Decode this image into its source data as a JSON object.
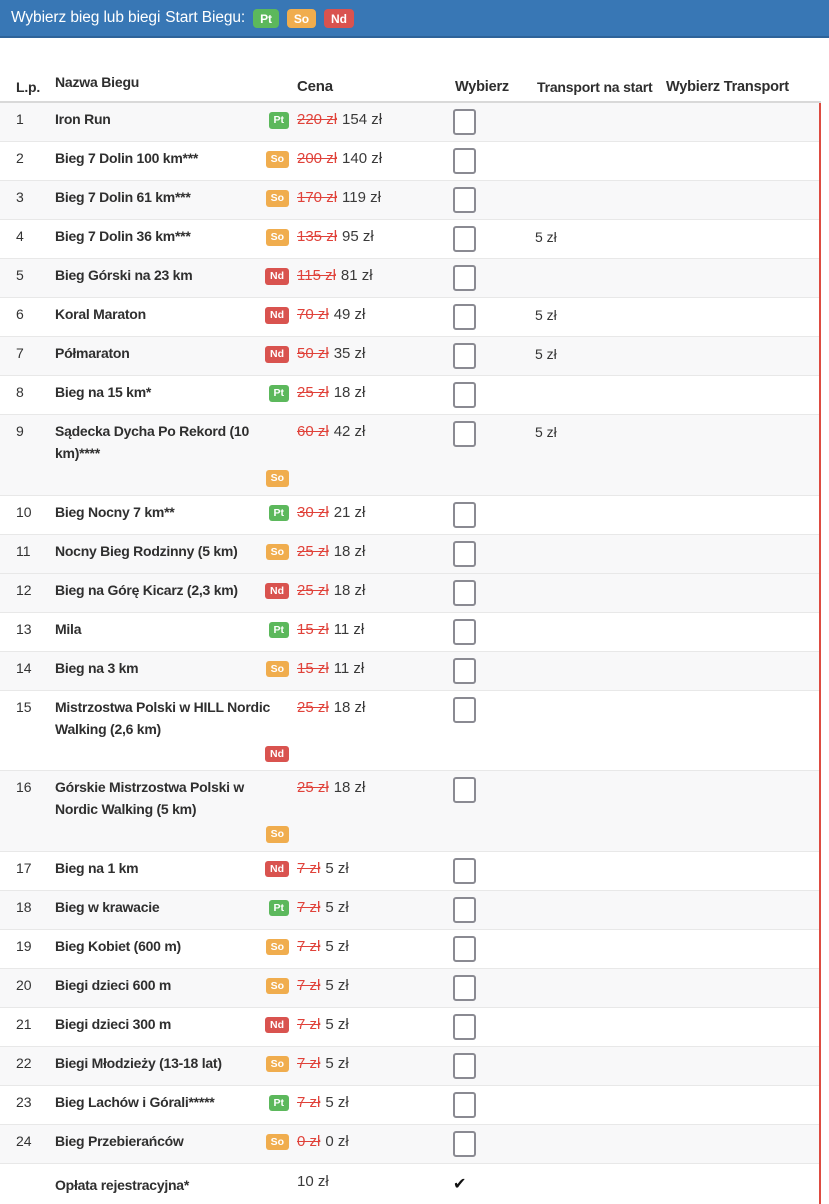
{
  "header_bar": {
    "title": "Wybierz bieg lub biegi",
    "legend_label": "Start Biegu:",
    "day_badges": [
      {
        "label": "Pt",
        "type": "pt"
      },
      {
        "label": "So",
        "type": "so"
      },
      {
        "label": "Nd",
        "type": "nd"
      }
    ]
  },
  "colors": {
    "bar_blue": "#3877b5",
    "badge_green": "#5cb85c",
    "badge_orange": "#f0ad4e",
    "badge_red": "#d9534f",
    "old_price_red": "#e0423a",
    "table_right_border_red": "#dd4b41"
  },
  "table": {
    "columns": [
      "L.p.",
      "Nazwa Biegu",
      "Cena",
      "Wybierz",
      "Transport na start",
      "Wybierz Transport"
    ],
    "rows": [
      {
        "lp": "1",
        "name": "Iron Run",
        "badge": "Pt",
        "old_price": "220 zł",
        "price": "154 zł",
        "transport": ""
      },
      {
        "lp": "2",
        "name": "Bieg 7 Dolin 100 km***",
        "badge": "So",
        "old_price": "200 zł",
        "price": "140 zł",
        "transport": ""
      },
      {
        "lp": "3",
        "name": "Bieg 7 Dolin 61 km***",
        "badge": "So",
        "old_price": "170 zł",
        "price": "119 zł",
        "transport": ""
      },
      {
        "lp": "4",
        "name": "Bieg 7 Dolin 36 km***",
        "badge": "So",
        "old_price": "135 zł",
        "price": "95 zł",
        "transport": "5 zł"
      },
      {
        "lp": "5",
        "name": "Bieg Górski na 23 km",
        "badge": "Nd",
        "old_price": "115 zł",
        "price": "81 zł",
        "transport": ""
      },
      {
        "lp": "6",
        "name": "Koral Maraton",
        "badge": "Nd",
        "old_price": "70 zł",
        "price": "49 zł",
        "transport": "5 zł"
      },
      {
        "lp": "7",
        "name": "Półmaraton",
        "badge": "Nd",
        "old_price": "50 zł",
        "price": "35 zł",
        "transport": "5 zł"
      },
      {
        "lp": "8",
        "name": "Bieg na 15 km*",
        "badge": "Pt",
        "old_price": "25 zł",
        "price": "18 zł",
        "transport": ""
      },
      {
        "lp": "9",
        "name": "Sądecka Dycha Po Rekord (10 km)****",
        "badge": "So",
        "old_price": "60 zł",
        "price": "42 zł",
        "transport": "5 zł"
      },
      {
        "lp": "10",
        "name": "Bieg Nocny 7 km**",
        "badge": "Pt",
        "old_price": "30 zł",
        "price": "21 zł",
        "transport": ""
      },
      {
        "lp": "11",
        "name": "Nocny Bieg Rodzinny (5 km)",
        "badge": "So",
        "old_price": "25 zł",
        "price": "18 zł",
        "transport": ""
      },
      {
        "lp": "12",
        "name": "Bieg na Górę Kicarz (2,3 km)",
        "badge": "Nd",
        "old_price": "25 zł",
        "price": "18 zł",
        "transport": ""
      },
      {
        "lp": "13",
        "name": "Mila",
        "badge": "Pt",
        "old_price": "15 zł",
        "price": "11 zł",
        "transport": ""
      },
      {
        "lp": "14",
        "name": "Bieg na 3 km",
        "badge": "So",
        "old_price": "15 zł",
        "price": "11 zł",
        "transport": ""
      },
      {
        "lp": "15",
        "name": "Mistrzostwa Polski w HILL Nordic Walking (2,6 km)",
        "badge": "Nd",
        "old_price": "25 zł",
        "price": "18 zł",
        "transport": ""
      },
      {
        "lp": "16",
        "name": "Górskie Mistrzostwa Polski w Nordic Walking (5 km)",
        "badge": "So",
        "old_price": "25 zł",
        "price": "18 zł",
        "transport": ""
      },
      {
        "lp": "17",
        "name": "Bieg na 1 km",
        "badge": "Nd",
        "old_price": "7 zł",
        "price": "5 zł",
        "transport": ""
      },
      {
        "lp": "18",
        "name": "Bieg w krawacie",
        "badge": "Pt",
        "old_price": "7 zł",
        "price": "5 zł",
        "transport": ""
      },
      {
        "lp": "19",
        "name": "Bieg Kobiet (600 m)",
        "badge": "So",
        "old_price": "7 zł",
        "price": "5 zł",
        "transport": ""
      },
      {
        "lp": "20",
        "name": "Biegi dzieci 600 m",
        "badge": "So",
        "old_price": "7 zł",
        "price": "5 zł",
        "transport": ""
      },
      {
        "lp": "21",
        "name": "Biegi dzieci 300 m",
        "badge": "Nd",
        "old_price": "7 zł",
        "price": "5 zł",
        "transport": ""
      },
      {
        "lp": "22",
        "name": "Biegi Młodzieży (13-18 lat)",
        "badge": "So",
        "old_price": "7 zł",
        "price": "5 zł",
        "transport": ""
      },
      {
        "lp": "23",
        "name": "Bieg Lachów i Górali*****",
        "badge": "Pt",
        "old_price": "7 zł",
        "price": "5 zł",
        "transport": ""
      },
      {
        "lp": "24",
        "name": "Bieg Przebierańców",
        "badge": "So",
        "old_price": "0 zł",
        "price": "0 zł",
        "transport": ""
      }
    ],
    "footer_row": {
      "name": "Opłata rejestracyjna*",
      "price": "10 zł",
      "selected_mark": "✔"
    }
  }
}
